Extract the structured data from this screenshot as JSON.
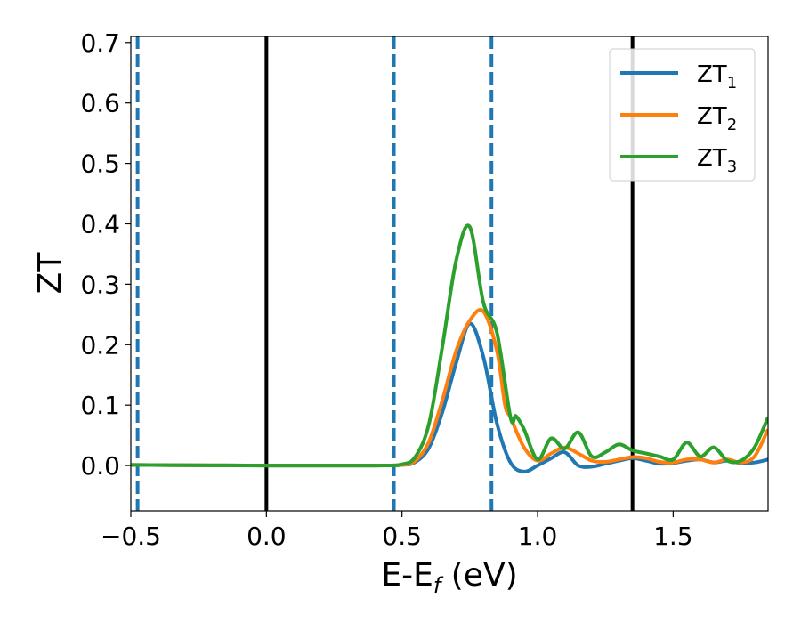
{
  "chart_data": {
    "type": "line",
    "xlabel": "E-E",
    "xlabel_subscript": "f",
    "xlabel_unit": "(eV)",
    "ylabel": "ZT",
    "xlim": [
      -0.5,
      1.85
    ],
    "ylim": [
      -0.075,
      0.71
    ],
    "xticks": [
      -0.5,
      0.0,
      0.5,
      1.0,
      1.5
    ],
    "xtick_labels": [
      "−0.5",
      "0.0",
      "0.5",
      "1.0",
      "1.5"
    ],
    "yticks": [
      0.0,
      0.1,
      0.2,
      0.3,
      0.4,
      0.5,
      0.6,
      0.7
    ],
    "ytick_labels": [
      "0.0",
      "0.1",
      "0.2",
      "0.3",
      "0.4",
      "0.5",
      "0.6",
      "0.7"
    ],
    "grid": false,
    "legend_position": "top-right",
    "vertical_lines": [
      {
        "x": -0.475,
        "style": "dashed",
        "color": "#1f77b4"
      },
      {
        "x": 0.0,
        "style": "solid",
        "color": "#000000"
      },
      {
        "x": 0.47,
        "style": "dashed",
        "color": "#1f77b4"
      },
      {
        "x": 0.83,
        "style": "dashed",
        "color": "#1f77b4"
      },
      {
        "x": 1.35,
        "style": "solid",
        "color": "#000000"
      }
    ],
    "series": [
      {
        "name": "ZT",
        "name_subscript": "1",
        "color": "#1f77b4",
        "x": [
          -0.5,
          0.0,
          0.4,
          0.5,
          0.55,
          0.6,
          0.65,
          0.7,
          0.75,
          0.8,
          0.85,
          0.9,
          0.95,
          1.0,
          1.05,
          1.1,
          1.15,
          1.2,
          1.25,
          1.3,
          1.35,
          1.4,
          1.45,
          1.5,
          1.55,
          1.6,
          1.65,
          1.7,
          1.75,
          1.8,
          1.85
        ],
        "values": [
          0.001,
          0.0,
          0.0,
          0.001,
          0.006,
          0.03,
          0.09,
          0.17,
          0.235,
          0.18,
          0.07,
          0.005,
          -0.01,
          0.0,
          0.012,
          0.022,
          0.0,
          -0.002,
          0.003,
          0.008,
          0.012,
          0.008,
          0.003,
          0.004,
          0.008,
          0.01,
          0.005,
          0.008,
          0.004,
          0.005,
          0.01
        ]
      },
      {
        "name": "ZT",
        "name_subscript": "2",
        "color": "#ff7f0e",
        "x": [
          -0.5,
          0.0,
          0.4,
          0.5,
          0.55,
          0.6,
          0.65,
          0.7,
          0.75,
          0.8,
          0.85,
          0.88,
          0.9,
          0.95,
          1.0,
          1.05,
          1.1,
          1.15,
          1.2,
          1.25,
          1.3,
          1.35,
          1.4,
          1.45,
          1.5,
          1.55,
          1.6,
          1.65,
          1.7,
          1.75,
          1.8,
          1.85
        ],
        "values": [
          0.001,
          0.0,
          0.0,
          0.001,
          0.008,
          0.04,
          0.11,
          0.19,
          0.24,
          0.255,
          0.19,
          0.1,
          0.08,
          0.03,
          0.008,
          0.02,
          0.03,
          0.02,
          0.008,
          0.006,
          0.01,
          0.014,
          0.012,
          0.006,
          0.005,
          0.01,
          0.01,
          0.005,
          0.01,
          0.005,
          0.015,
          0.06
        ]
      },
      {
        "name": "ZT",
        "name_subscript": "3",
        "color": "#2ca02c",
        "x": [
          -0.5,
          0.0,
          0.4,
          0.5,
          0.55,
          0.6,
          0.65,
          0.7,
          0.75,
          0.8,
          0.85,
          0.9,
          0.92,
          0.95,
          1.0,
          1.05,
          1.1,
          1.15,
          1.2,
          1.25,
          1.3,
          1.35,
          1.4,
          1.45,
          1.5,
          1.55,
          1.6,
          1.65,
          1.7,
          1.75,
          1.8,
          1.85
        ],
        "values": [
          0.001,
          0.0,
          0.0,
          0.002,
          0.015,
          0.07,
          0.2,
          0.34,
          0.395,
          0.27,
          0.22,
          0.08,
          0.082,
          0.06,
          0.01,
          0.045,
          0.028,
          0.055,
          0.015,
          0.022,
          0.035,
          0.025,
          0.02,
          0.015,
          0.01,
          0.038,
          0.015,
          0.03,
          0.008,
          0.008,
          0.03,
          0.08
        ]
      }
    ]
  }
}
